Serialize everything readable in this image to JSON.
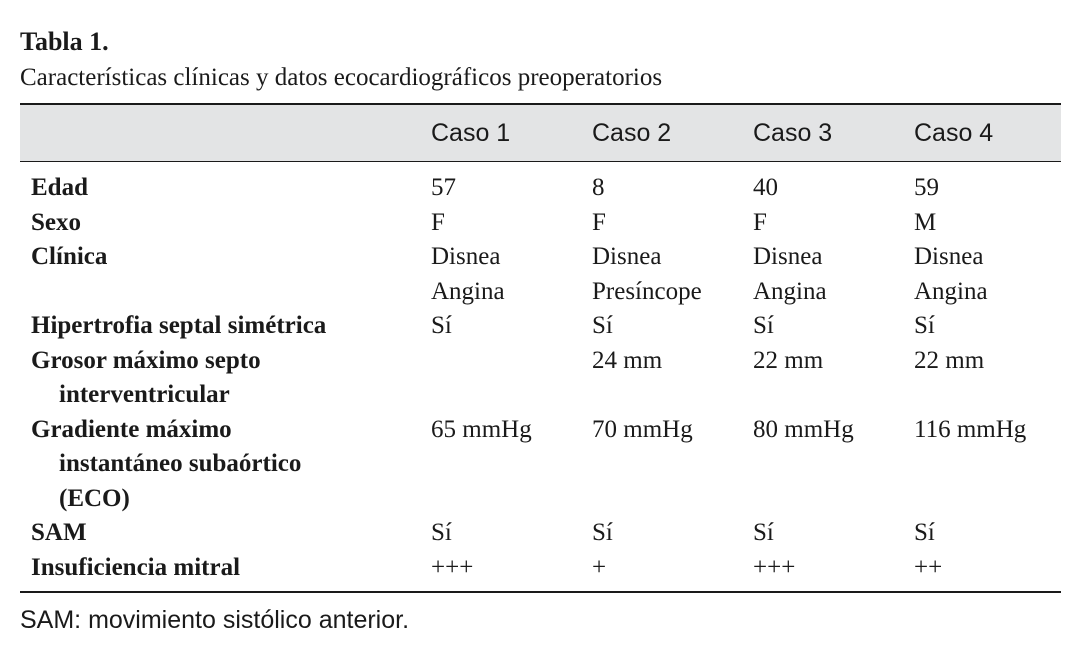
{
  "caption": {
    "title": "Tabla 1.",
    "subtitle": "Características clínicas y datos ecocardiográficos preoperatorios"
  },
  "table": {
    "headers": [
      "",
      "Caso 1",
      "Caso 2",
      "Caso 3",
      "Caso 4"
    ],
    "rows": [
      {
        "label": [
          "Edad"
        ],
        "values": [
          [
            "57"
          ],
          [
            "8"
          ],
          [
            "40"
          ],
          [
            "59"
          ]
        ]
      },
      {
        "label": [
          "Sexo"
        ],
        "values": [
          [
            "F"
          ],
          [
            "F"
          ],
          [
            "F"
          ],
          [
            "M"
          ]
        ]
      },
      {
        "label": [
          "Clínica"
        ],
        "values": [
          [
            "Disnea",
            "Angina"
          ],
          [
            "Disnea",
            "Presíncope"
          ],
          [
            "Disnea",
            "Angina"
          ],
          [
            "Disnea",
            "Angina"
          ]
        ]
      },
      {
        "label": [
          "Hipertrofia septal simétrica"
        ],
        "values": [
          [
            "Sí"
          ],
          [
            "Sí"
          ],
          [
            "Sí"
          ],
          [
            "Sí"
          ]
        ]
      },
      {
        "label": [
          "Grosor máximo septo",
          "interventricular"
        ],
        "values": [
          [
            ""
          ],
          [
            "24 mm"
          ],
          [
            "22 mm"
          ],
          [
            "22 mm"
          ]
        ]
      },
      {
        "label": [
          "Gradiente máximo",
          "instantáneo subaórtico",
          "(ECO)"
        ],
        "values": [
          [
            "65 mmHg"
          ],
          [
            "70 mmHg"
          ],
          [
            "80 mmHg"
          ],
          [
            "116 mmHg"
          ]
        ]
      },
      {
        "label": [
          "SAM"
        ],
        "values": [
          [
            "Sí"
          ],
          [
            "Sí"
          ],
          [
            "Sí"
          ],
          [
            "Sí"
          ]
        ]
      },
      {
        "label": [
          "Insuficiencia mitral"
        ],
        "values": [
          [
            "+++"
          ],
          [
            "+"
          ],
          [
            "+++"
          ],
          [
            "++"
          ]
        ]
      }
    ]
  },
  "footnote": "SAM: movimiento sistólico anterior."
}
